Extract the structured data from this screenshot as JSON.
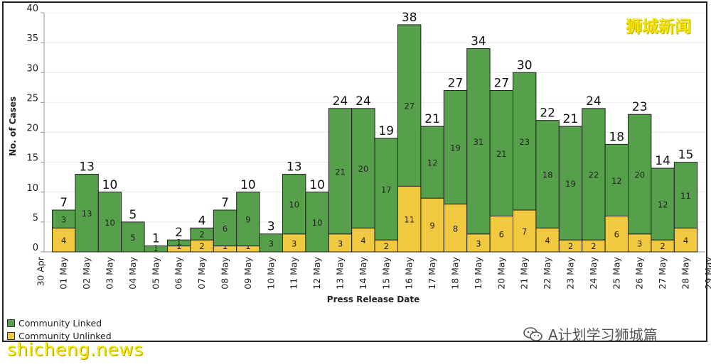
{
  "chart_data": {
    "type": "bar",
    "stacked": true,
    "title": "",
    "xlabel": "Press Release Date",
    "ylabel": "No. of Cases",
    "ylim": [
      0,
      40
    ],
    "yticks": [
      0,
      5,
      10,
      15,
      20,
      25,
      30,
      35,
      40
    ],
    "x_axis_labels": [
      "30 Apr",
      "01 May",
      "02 May",
      "03 May",
      "04 May",
      "05 May",
      "06 May",
      "07 May",
      "08 May",
      "09 May",
      "10 May",
      "11 May",
      "12 May",
      "13 May",
      "14 May",
      "15 May",
      "16 May",
      "17 May",
      "18 May",
      "19 May",
      "20 May",
      "21 May",
      "22 May",
      "23 May",
      "24 May",
      "25 May",
      "26 May",
      "27 May",
      "28 May",
      "29 May"
    ],
    "categories": [
      "01 May",
      "02 May",
      "03 May",
      "04 May",
      "05 May",
      "06 May",
      "07 May",
      "08 May",
      "09 May",
      "10 May",
      "11 May",
      "12 May",
      "13 May",
      "14 May",
      "15 May",
      "16 May",
      "17 May",
      "18 May",
      "19 May",
      "20 May",
      "21 May",
      "22 May",
      "23 May",
      "24 May",
      "25 May",
      "26 May",
      "27 May",
      "28 May"
    ],
    "series": [
      {
        "name": "Community Unlinked",
        "color": "#f0c940",
        "values": [
          4,
          0,
          0,
          0,
          0,
          1,
          2,
          1,
          1,
          0,
          3,
          0,
          3,
          4,
          2,
          11,
          9,
          8,
          3,
          6,
          7,
          4,
          2,
          2,
          6,
          3,
          2,
          4
        ]
      },
      {
        "name": "Community Linked",
        "color": "#57a04b",
        "values": [
          3,
          13,
          10,
          5,
          1,
          1,
          2,
          6,
          9,
          3,
          10,
          10,
          21,
          20,
          17,
          27,
          12,
          19,
          31,
          21,
          23,
          18,
          19,
          22,
          12,
          20,
          12,
          11
        ]
      }
    ],
    "totals": [
      7,
      13,
      10,
      5,
      1,
      2,
      4,
      7,
      10,
      3,
      13,
      10,
      24,
      24,
      19,
      38,
      21,
      27,
      34,
      27,
      30,
      22,
      21,
      24,
      18,
      23,
      14,
      15
    ],
    "legend": [
      "Community Linked",
      "Community Unlinked"
    ],
    "legend_position": "bottom-left",
    "grid": true
  },
  "watermarks": {
    "top_right": "狮城新闻",
    "bottom_left": "shicheng.news",
    "wechat": "A计划学习狮城篇"
  }
}
